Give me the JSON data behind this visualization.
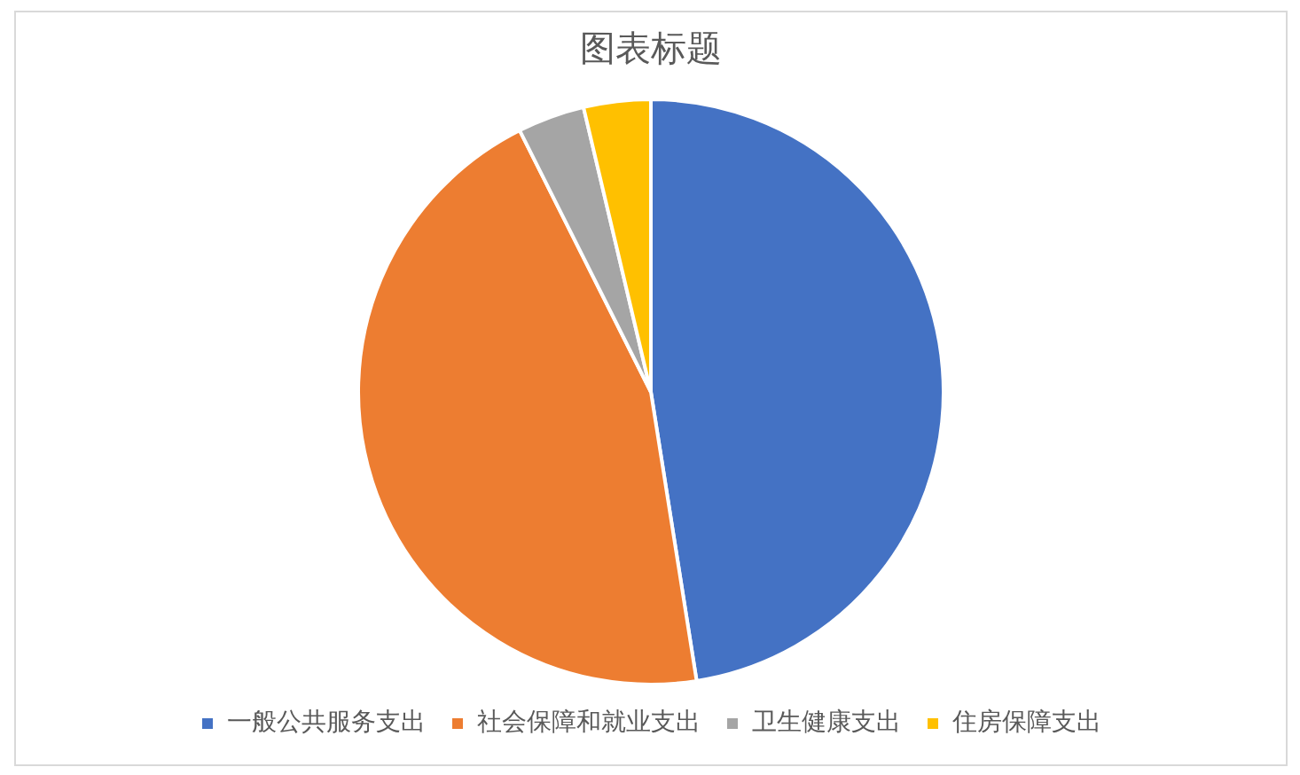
{
  "chart_data": {
    "type": "pie",
    "title": "图表标题",
    "categories": [
      "一般公共服务支出",
      "社会保障和就业支出",
      "卫生健康支出",
      "住房保障支出"
    ],
    "values": [
      47.5,
      45.1,
      3.7,
      3.7
    ],
    "colors": [
      "#4472c4",
      "#ed7d31",
      "#a5a5a5",
      "#ffc000"
    ],
    "legend": "bottom"
  }
}
